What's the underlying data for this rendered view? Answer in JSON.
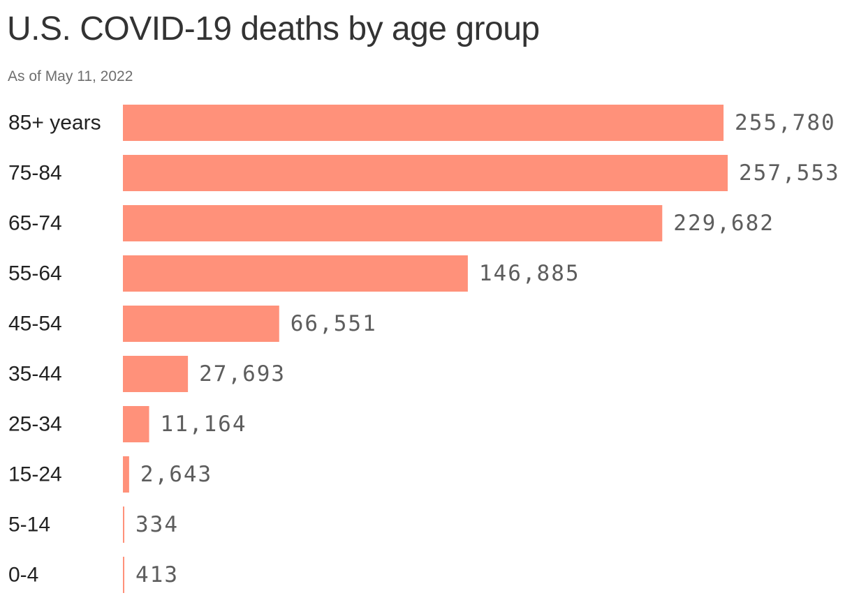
{
  "chart_data": {
    "type": "bar",
    "orientation": "horizontal",
    "title": "U.S. COVID-19 deaths by age group",
    "subtitle": "As of May 11, 2022",
    "xlabel": "",
    "ylabel": "",
    "categories": [
      "85+ years",
      "75-84",
      "65-74",
      "55-64",
      "45-54",
      "35-44",
      "25-34",
      "15-24",
      "5-14",
      "0-4"
    ],
    "values": [
      255780,
      257553,
      229682,
      146885,
      66551,
      27693,
      11164,
      2643,
      334,
      413
    ],
    "value_labels": [
      "255,780",
      "257,553",
      "229,682",
      "146,885",
      "66,551",
      "27,693",
      "11,164",
      "2,643",
      "334",
      "413"
    ],
    "xlim": [
      0,
      257553
    ],
    "grid": false,
    "bar_color": "#ff917a"
  }
}
